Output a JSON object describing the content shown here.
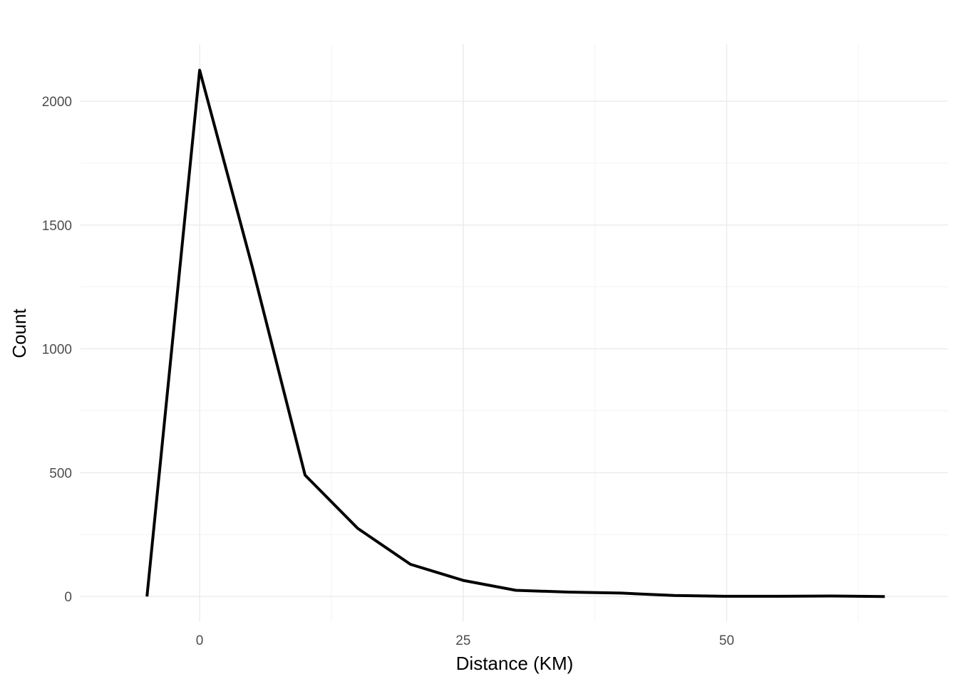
{
  "chart_data": {
    "type": "line",
    "title": "",
    "xlabel": "Distance (KM)",
    "ylabel": "Count",
    "xlim": [
      -11.3,
      71
    ],
    "ylim": [
      -100,
      2230
    ],
    "x_ticks": [
      0,
      25,
      50
    ],
    "x_tick_labels": [
      "0",
      "25",
      "50"
    ],
    "x_minor_ticks": [
      12.5,
      37.5,
      62.5
    ],
    "y_ticks": [
      0,
      500,
      1000,
      1500,
      2000
    ],
    "y_tick_labels": [
      "0",
      "500",
      "1000",
      "1500",
      "2000"
    ],
    "y_minor_ticks": [
      250,
      750,
      1250,
      1750
    ],
    "grid": true,
    "legend": "none",
    "series": [
      {
        "color": "#000000",
        "x": [
          -5,
          0,
          5,
          10,
          15,
          20,
          25,
          30,
          35,
          40,
          45,
          50,
          55,
          60,
          65
        ],
        "y": [
          0,
          2125,
          1330,
          490,
          275,
          130,
          65,
          25,
          18,
          14,
          4,
          1,
          1,
          2,
          0
        ]
      }
    ]
  }
}
